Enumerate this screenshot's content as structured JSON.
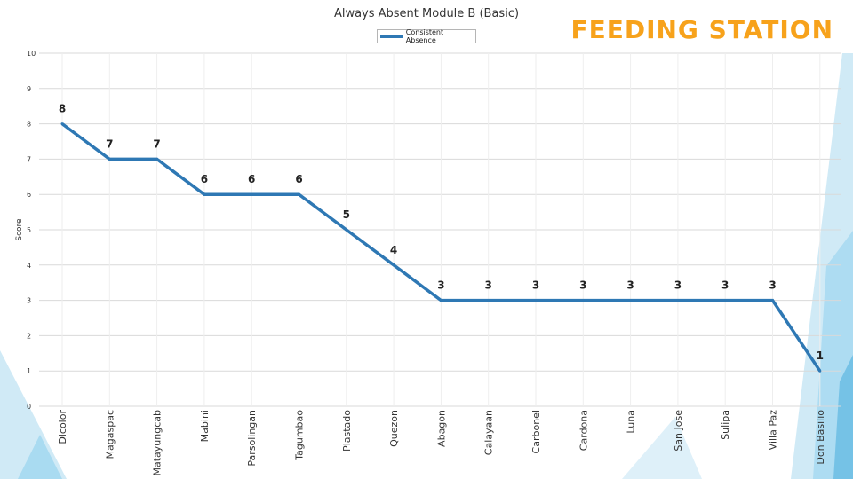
{
  "header": {
    "banner": "FEEDING STATION"
  },
  "colors": {
    "accent": "#f7a21b",
    "line": "#2e78b4",
    "decor_light": "#d0eaf6",
    "decor_mid": "#8fd0ee",
    "decor_dark": "#3ea8d9",
    "grid": "#d9d9d9",
    "text": "#333333"
  },
  "chart_data": {
    "type": "line",
    "title": "Always Absent Module B (Basic)",
    "xlabel": "",
    "ylabel": "Score",
    "ylim": [
      0,
      10
    ],
    "yticks": [
      0,
      1,
      2,
      3,
      4,
      5,
      6,
      7,
      8,
      9,
      10
    ],
    "grid": true,
    "legend_position": "top-center",
    "categories": [
      "Dicolor",
      "Magaspac",
      "Matayungcab",
      "Mabini",
      "Parsolingan",
      "Tagumbao",
      "Plastado",
      "Quezon",
      "Abagon",
      "Calayaan",
      "Carbonel",
      "Cardona",
      "Luna",
      "San Jose",
      "Sulipa",
      "Villa Paz",
      "Don Basilio"
    ],
    "series": [
      {
        "name": "Consistent Absence",
        "values": [
          8,
          7,
          7,
          6,
          6,
          6,
          5,
          4,
          3,
          3,
          3,
          3,
          3,
          3,
          3,
          3,
          1
        ]
      }
    ]
  }
}
